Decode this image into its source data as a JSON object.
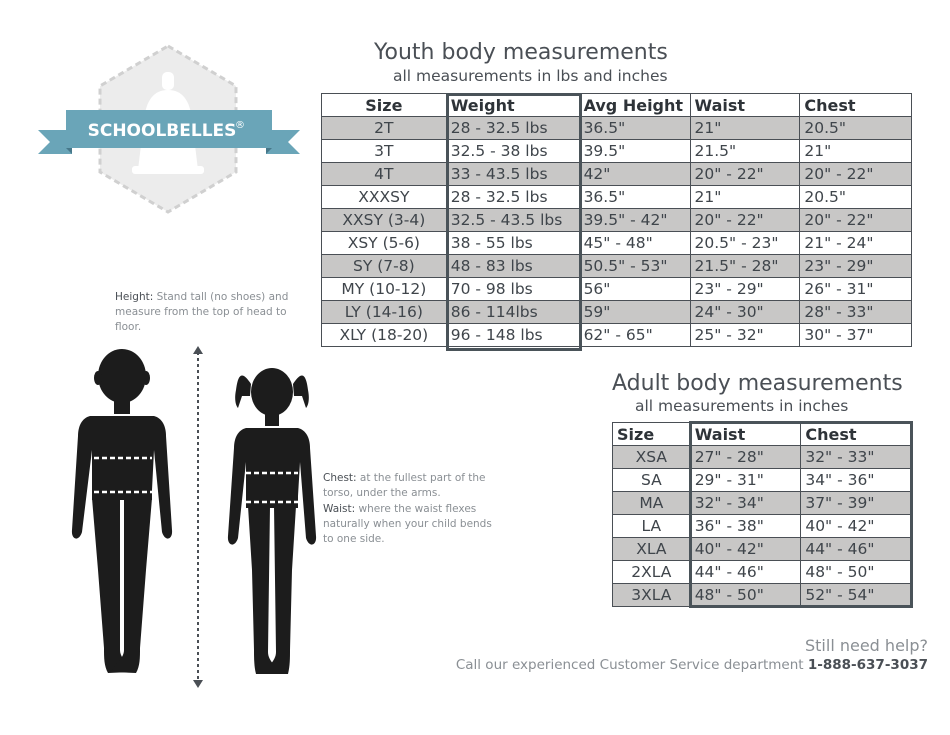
{
  "logo": {
    "brand": "SCHOOLBELLES",
    "reg_mark": "®"
  },
  "youth": {
    "title": "Youth body measurements",
    "subtitle": "all measurements in lbs and inches",
    "headers": [
      "Size",
      "Weight",
      "Avg Height",
      "Waist",
      "Chest"
    ],
    "rows": [
      [
        "2T",
        "28 - 32.5 lbs",
        "36.5\"",
        "21\"",
        "20.5\""
      ],
      [
        "3T",
        "32.5 - 38 lbs",
        "39.5\"",
        "21.5\"",
        "21\""
      ],
      [
        "4T",
        "33 - 43.5 lbs",
        "42\"",
        "20\" - 22\"",
        "20\" - 22\""
      ],
      [
        "XXXSY",
        "28 - 32.5 lbs",
        "36.5\"",
        "21\"",
        "20.5\""
      ],
      [
        "XXSY (3-4)",
        "32.5 - 43.5 lbs",
        "39.5\" - 42\"",
        "20\" - 22\"",
        "20\" - 22\""
      ],
      [
        "XSY (5-6)",
        "38 - 55 lbs",
        "45\" - 48\"",
        "20.5\" - 23\"",
        "21\" - 24\""
      ],
      [
        "SY (7-8)",
        "48 - 83 lbs",
        "50.5\" - 53\"",
        "21.5\" - 28\"",
        "23\" - 29\""
      ],
      [
        "MY (10-12)",
        "70 - 98 lbs",
        "56\"",
        "23\" - 29\"",
        "26\" - 31\""
      ],
      [
        "LY (14-16)",
        "86 - 114lbs",
        "59\"",
        "24\" - 30\"",
        "28\" - 33\""
      ],
      [
        "XLY (18-20)",
        "96 - 148 lbs",
        "62\" - 65\"",
        "25\" - 32\"",
        "30\" - 37\""
      ]
    ]
  },
  "adult": {
    "title": "Adult body measurements",
    "subtitle": "all measurements in inches",
    "headers": [
      "Size",
      "Waist",
      "Chest"
    ],
    "rows": [
      [
        "XSA",
        "27\" - 28\"",
        "32\" - 33\""
      ],
      [
        "SA",
        "29\" - 31\"",
        "34\" - 36\""
      ],
      [
        "MA",
        "32\" - 34\"",
        "37\" - 39\""
      ],
      [
        "LA",
        "36\" - 38\"",
        "40\" - 42\""
      ],
      [
        "XLA",
        "40\" - 42\"",
        "44\" - 46\""
      ],
      [
        "2XLA",
        "44\" - 46\"",
        "48\" - 50\""
      ],
      [
        "3XLA",
        "48\" - 50\"",
        "52\" - 54\""
      ]
    ]
  },
  "instructions": {
    "height_label": "Height:",
    "height_text": " Stand tall (no shoes) and measure from the top of head to floor.",
    "chest_label": "Chest:",
    "chest_text": " at the fullest part of the torso, under the arms.",
    "waist_label": "Waist:",
    "waist_text": " where the waist flexes naturally when your child bends to one side."
  },
  "help": {
    "question": "Still need help?",
    "text": "Call our experienced Customer Service department ",
    "phone": "1-888-637-3037"
  },
  "colors": {
    "banner": "#6aa5b8",
    "silhouette": "#1c1c1c",
    "shade": "#c8c7c6",
    "border": "#4a5359",
    "text": "#4a4f55"
  }
}
